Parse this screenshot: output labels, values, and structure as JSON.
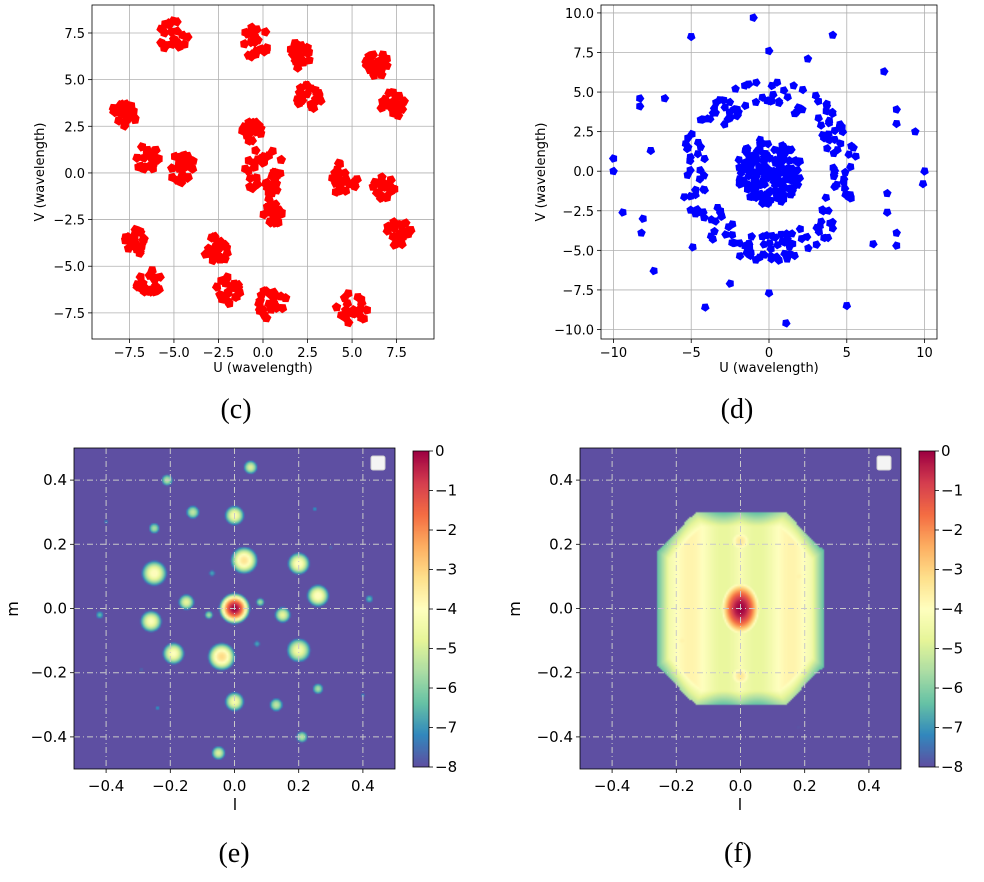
{
  "chart_data": [
    {
      "id": "c",
      "type": "scatter",
      "caption": "(c)",
      "xlabel": "U (wavelength)",
      "ylabel": "V (wavelength)",
      "xlim": [
        -9.6,
        9.6
      ],
      "ylim": [
        -8.9,
        9.0
      ],
      "xticks": [
        -7.5,
        -5.0,
        -2.5,
        0.0,
        2.5,
        5.0,
        7.5
      ],
      "xtick_labels": [
        "−7.5",
        "−5.0",
        "−2.5",
        "0.0",
        "2.5",
        "5.0",
        "7.5"
      ],
      "yticks": [
        -7.5,
        -5.0,
        -2.5,
        0.0,
        2.5,
        5.0,
        7.5
      ],
      "ytick_labels": [
        "−7.5",
        "−5.0",
        "−2.5",
        "0.0",
        "2.5",
        "5.0",
        "7.5"
      ],
      "grid": true,
      "marker": "pentagon",
      "color": "#ff0000",
      "clusters": [
        {
          "x": 0.0,
          "y": 0.0,
          "r": 1.2,
          "ring": true
        },
        {
          "x": -4.4,
          "y": 0.2,
          "r": 1.1
        },
        {
          "x": 4.5,
          "y": -0.3,
          "r": 1.1
        },
        {
          "x": -6.5,
          "y": 0.8,
          "r": 0.9
        },
        {
          "x": 6.8,
          "y": -0.8,
          "r": 0.8
        },
        {
          "x": -7.8,
          "y": 3.2,
          "r": 0.9
        },
        {
          "x": 7.6,
          "y": -3.2,
          "r": 0.9
        },
        {
          "x": -5.0,
          "y": 7.3,
          "r": 1.1
        },
        {
          "x": 5.0,
          "y": -7.3,
          "r": 1.1
        },
        {
          "x": -0.5,
          "y": 7.0,
          "r": 1.1
        },
        {
          "x": 0.5,
          "y": -7.0,
          "r": 1.1
        },
        {
          "x": 2.0,
          "y": 6.3,
          "r": 0.9
        },
        {
          "x": -2.0,
          "y": -6.3,
          "r": 0.9
        },
        {
          "x": 6.4,
          "y": 5.9,
          "r": 0.9
        },
        {
          "x": -6.4,
          "y": -5.9,
          "r": 0.9
        },
        {
          "x": 2.6,
          "y": 4.1,
          "r": 0.9
        },
        {
          "x": -2.6,
          "y": -4.1,
          "r": 0.9
        },
        {
          "x": 7.3,
          "y": 3.7,
          "r": 0.9
        },
        {
          "x": -7.3,
          "y": -3.7,
          "r": 0.9
        },
        {
          "x": -0.6,
          "y": 2.2,
          "r": 0.7
        },
        {
          "x": 0.6,
          "y": -2.2,
          "r": 0.7
        }
      ]
    },
    {
      "id": "d",
      "type": "scatter",
      "caption": "(d)",
      "xlabel": "U (wavelength)",
      "ylabel": "V (wavelength)",
      "xlim": [
        -10.8,
        10.8
      ],
      "ylim": [
        -10.6,
        10.5
      ],
      "xticks": [
        -10,
        -5,
        0,
        5,
        10
      ],
      "xtick_labels": [
        "−10",
        "−5",
        "0",
        "5",
        "10"
      ],
      "yticks": [
        -10.0,
        -7.5,
        -5.0,
        -2.5,
        0.0,
        2.5,
        5.0,
        7.5,
        10.0
      ],
      "ytick_labels": [
        "−10.0",
        "−7.5",
        "−5.0",
        "−2.5",
        "0.0",
        "2.5",
        "5.0",
        "7.5",
        "10.0"
      ],
      "grid": true,
      "marker": "pentagon",
      "color": "#0000ff",
      "core": {
        "x": 0.0,
        "y": 0.0,
        "r": 2.1
      },
      "ring": {
        "r_inner": 4.0,
        "r_outer": 5.7
      },
      "outliers": [
        [
          -1.0,
          9.7
        ],
        [
          0.0,
          7.6
        ],
        [
          2.5,
          7.1
        ],
        [
          4.1,
          8.6
        ],
        [
          -5.0,
          8.5
        ],
        [
          7.4,
          6.3
        ],
        [
          -8.3,
          4.6
        ],
        [
          -6.7,
          4.6
        ],
        [
          -8.3,
          4.1
        ],
        [
          8.2,
          3.9
        ],
        [
          9.4,
          2.5
        ],
        [
          8.2,
          3.0
        ],
        [
          -10.0,
          0.8
        ],
        [
          -10.0,
          0.0
        ],
        [
          -7.6,
          1.3
        ],
        [
          7.6,
          -1.4
        ],
        [
          10.0,
          0.0
        ],
        [
          9.9,
          -0.8
        ],
        [
          -9.4,
          -2.6
        ],
        [
          -8.1,
          -3.0
        ],
        [
          -8.2,
          -3.9
        ],
        [
          -7.4,
          -6.3
        ],
        [
          -4.9,
          -4.8
        ],
        [
          -2.5,
          -7.1
        ],
        [
          0.0,
          -7.7
        ],
        [
          1.1,
          -9.6
        ],
        [
          -4.1,
          -8.6
        ],
        [
          5.0,
          -8.5
        ],
        [
          6.7,
          -4.6
        ],
        [
          8.2,
          -3.9
        ],
        [
          8.2,
          -4.7
        ],
        [
          7.6,
          -2.6
        ]
      ]
    },
    {
      "id": "e",
      "type": "heatmap",
      "caption": "(e)",
      "xlabel": "l",
      "ylabel": "m",
      "xlim": [
        -0.5,
        0.5
      ],
      "ylim": [
        -0.5,
        0.5
      ],
      "xticks": [
        -0.4,
        -0.2,
        0.0,
        0.2,
        0.4
      ],
      "xtick_labels": [
        "−0.4",
        "−0.2",
        "0.0",
        "0.2",
        "0.4"
      ],
      "yticks": [
        -0.4,
        -0.2,
        0.0,
        0.2,
        0.4
      ],
      "ytick_labels": [
        "−0.4",
        "−0.2",
        "0.0",
        "0.2",
        "0.4"
      ],
      "colorbar": {
        "min": -8,
        "max": 0,
        "ticks": [
          0,
          -1,
          -2,
          -3,
          -4,
          -5,
          -6,
          -7,
          -8
        ],
        "tick_labels": [
          "0",
          "−1",
          "−2",
          "−3",
          "−4",
          "−5",
          "−6",
          "−7",
          "−8"
        ]
      },
      "colormap": "Spectral_r",
      "grid": "dash-dot",
      "peaks": [
        {
          "l": 0.0,
          "m": 0.0,
          "v": 0.0,
          "s": 0.035
        },
        {
          "l": 0.03,
          "m": 0.15,
          "v": -3.3,
          "s": 0.04
        },
        {
          "l": -0.04,
          "m": -0.15,
          "v": -3.1,
          "s": 0.04
        },
        {
          "l": 0.2,
          "m": 0.14,
          "v": -3.9,
          "s": 0.035
        },
        {
          "l": -0.25,
          "m": 0.11,
          "v": -3.9,
          "s": 0.04
        },
        {
          "l": 0.26,
          "m": 0.04,
          "v": -3.9,
          "s": 0.035
        },
        {
          "l": -0.26,
          "m": -0.04,
          "v": -4.1,
          "s": 0.035
        },
        {
          "l": 0.2,
          "m": -0.13,
          "v": -4.3,
          "s": 0.04
        },
        {
          "l": -0.19,
          "m": -0.14,
          "v": -4.0,
          "s": 0.035
        },
        {
          "l": 0.0,
          "m": 0.29,
          "v": -4.2,
          "s": 0.032
        },
        {
          "l": 0.0,
          "m": -0.29,
          "v": -4.3,
          "s": 0.032
        },
        {
          "l": -0.15,
          "m": 0.02,
          "v": -4.7,
          "s": 0.028
        },
        {
          "l": 0.15,
          "m": -0.02,
          "v": -4.7,
          "s": 0.028
        },
        {
          "l": -0.13,
          "m": 0.3,
          "v": -5.3,
          "s": 0.026
        },
        {
          "l": 0.13,
          "m": -0.3,
          "v": -5.3,
          "s": 0.026
        },
        {
          "l": 0.05,
          "m": 0.44,
          "v": -4.9,
          "s": 0.025
        },
        {
          "l": -0.05,
          "m": -0.45,
          "v": -4.9,
          "s": 0.025
        },
        {
          "l": -0.21,
          "m": 0.4,
          "v": -5.4,
          "s": 0.023
        },
        {
          "l": 0.21,
          "m": -0.4,
          "v": -5.4,
          "s": 0.023
        },
        {
          "l": 0.26,
          "m": -0.25,
          "v": -5.6,
          "s": 0.022
        },
        {
          "l": -0.25,
          "m": 0.25,
          "v": -5.6,
          "s": 0.022
        },
        {
          "l": -0.4,
          "m": 0.27,
          "v": -7.2,
          "s": 0.015
        },
        {
          "l": 0.4,
          "m": -0.27,
          "v": -7.2,
          "s": 0.015
        },
        {
          "l": -0.42,
          "m": -0.02,
          "v": -6.5,
          "s": 0.02
        },
        {
          "l": 0.42,
          "m": 0.03,
          "v": -6.5,
          "s": 0.02
        },
        {
          "l": 0.08,
          "m": 0.02,
          "v": -5.7,
          "s": 0.018
        },
        {
          "l": -0.08,
          "m": -0.02,
          "v": -5.7,
          "s": 0.018
        },
        {
          "l": -0.07,
          "m": 0.11,
          "v": -6.8,
          "s": 0.018
        },
        {
          "l": 0.07,
          "m": -0.11,
          "v": -6.8,
          "s": 0.018
        },
        {
          "l": 0.25,
          "m": 0.31,
          "v": -7.0,
          "s": 0.015
        },
        {
          "l": -0.24,
          "m": -0.31,
          "v": -7.0,
          "s": 0.015
        },
        {
          "l": 0.3,
          "m": 0.19,
          "v": -7.4,
          "s": 0.012
        },
        {
          "l": -0.29,
          "m": -0.19,
          "v": -7.4,
          "s": 0.012
        }
      ]
    },
    {
      "id": "f",
      "type": "heatmap",
      "caption": "(f)",
      "xlabel": "l",
      "ylabel": "m",
      "xlim": [
        -0.5,
        0.5
      ],
      "ylim": [
        -0.5,
        0.5
      ],
      "xticks": [
        -0.4,
        -0.2,
        0.0,
        0.2,
        0.4
      ],
      "xtick_labels": [
        "−0.4",
        "−0.2",
        "0.0",
        "0.2",
        "0.4"
      ],
      "yticks": [
        -0.4,
        -0.2,
        0.0,
        0.2,
        0.4
      ],
      "ytick_labels": [
        "−0.4",
        "−0.2",
        "0.0",
        "0.2",
        "0.4"
      ],
      "colorbar": {
        "min": -8,
        "max": 0,
        "ticks": [
          0,
          -1,
          -2,
          -3,
          -4,
          -5,
          -6,
          -7,
          -8
        ],
        "tick_labels": [
          "0",
          "−1",
          "−2",
          "−3",
          "−4",
          "−5",
          "−6",
          "−7",
          "−8"
        ]
      },
      "colormap": "Spectral_r",
      "grid": "dash-dot",
      "peaks": [
        {
          "l": 0.0,
          "m": 0.0,
          "v": 0.0,
          "s": 0.055,
          "sy": 0.075
        },
        {
          "l": 0.0,
          "m": 0.21,
          "v": -3.4,
          "s": 0.05
        },
        {
          "l": 0.0,
          "m": -0.21,
          "v": -3.4,
          "s": 0.05
        },
        {
          "l": -0.18,
          "m": 0.1,
          "v": -3.9,
          "s": 0.05
        },
        {
          "l": 0.18,
          "m": 0.1,
          "v": -3.7,
          "s": 0.05
        },
        {
          "l": -0.18,
          "m": -0.1,
          "v": -3.7,
          "s": 0.05
        },
        {
          "l": 0.18,
          "m": -0.1,
          "v": -3.9,
          "s": 0.05
        },
        {
          "l": -0.09,
          "m": 0.0,
          "v": -4.9,
          "s": 0.03
        },
        {
          "l": 0.09,
          "m": 0.0,
          "v": -4.9,
          "s": 0.03
        },
        {
          "l": -0.17,
          "m": 0.39,
          "v": -7.6,
          "s": 0.012
        },
        {
          "l": 0.18,
          "m": -0.37,
          "v": -7.6,
          "s": 0.012
        }
      ],
      "plateau": {
        "v": -4.2
      }
    }
  ]
}
